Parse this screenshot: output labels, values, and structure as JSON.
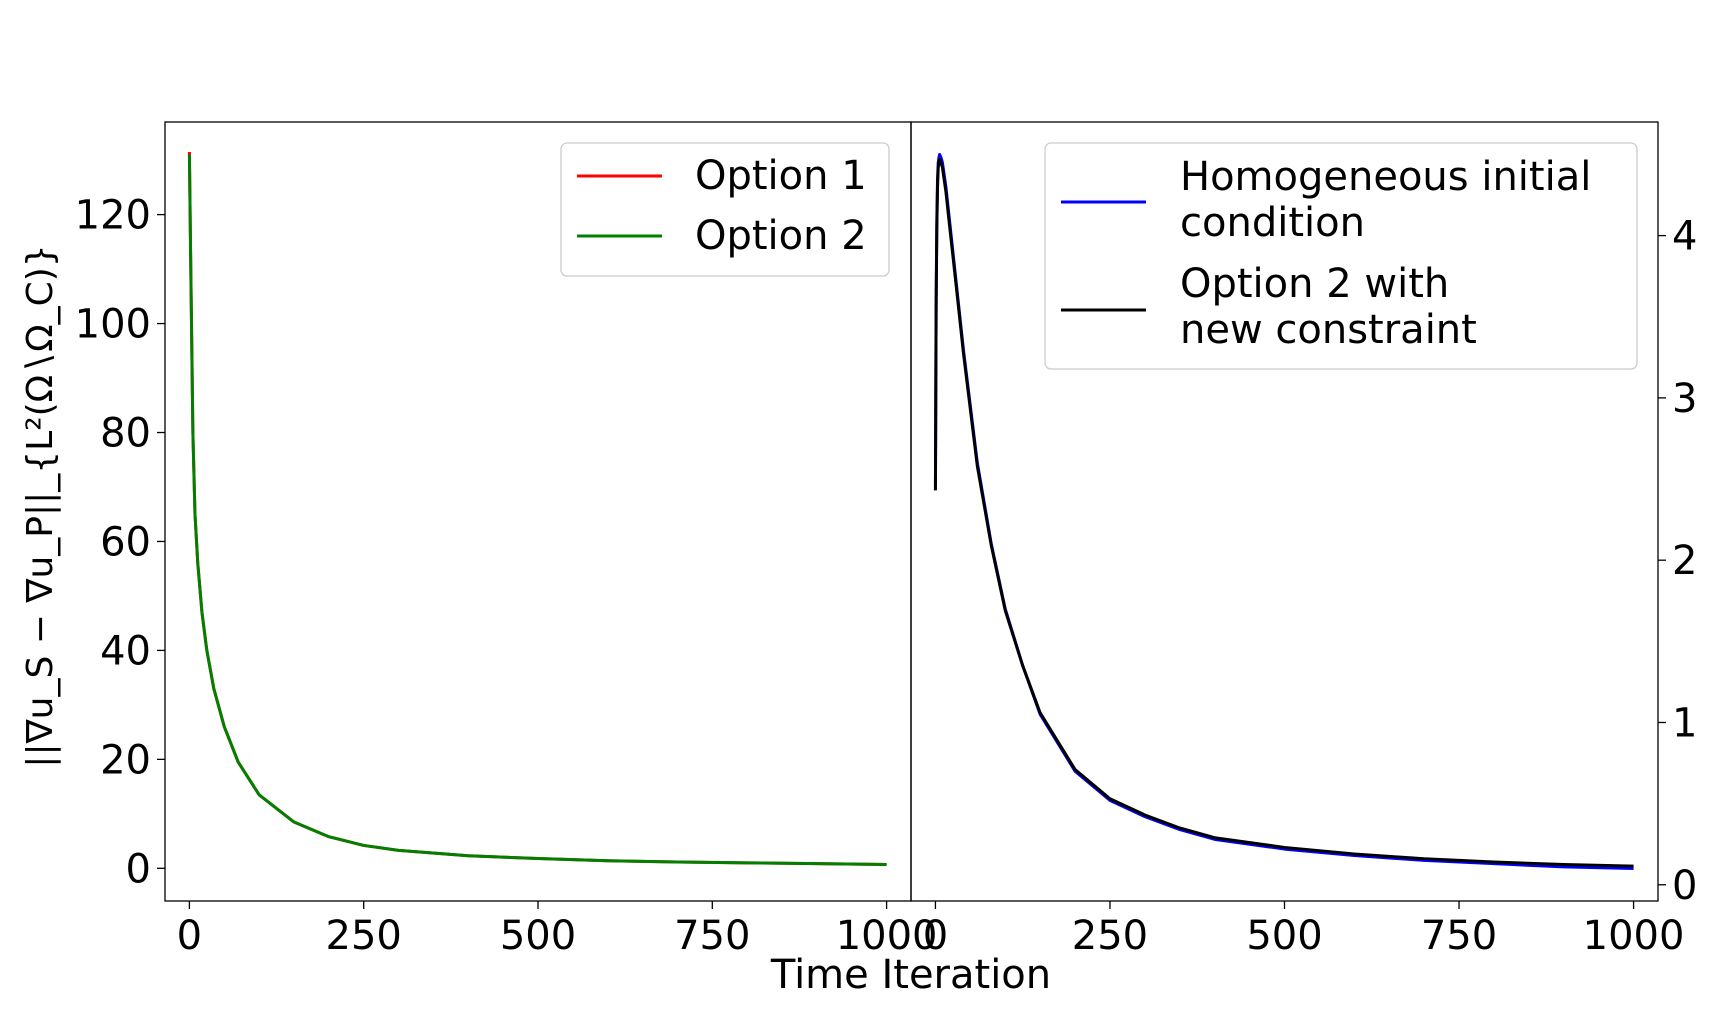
{
  "figure": {
    "xlabel": "Time Iteration",
    "ylabel": "||∇u_S − ∇u_P||_{L²(Ω∖Ω_C)}"
  },
  "chart_data": [
    {
      "type": "line",
      "panel": "left",
      "xlim": [
        -35,
        1035
      ],
      "ylim": [
        -6,
        137
      ],
      "xticks": [
        0,
        250,
        500,
        750,
        1000
      ],
      "yticks": [
        0,
        20,
        40,
        60,
        80,
        100,
        120
      ],
      "y_axis_side": "left",
      "grid": false,
      "legend_position": "top-right",
      "series": [
        {
          "name": "Option 1",
          "color": "#ff0000",
          "x": [
            0,
            2,
            5,
            8,
            12,
            18,
            25,
            35,
            50,
            70,
            100,
            150,
            200,
            250,
            300,
            400,
            500,
            600,
            700,
            800,
            900,
            1000
          ],
          "y": [
            131.5,
            110,
            80,
            65,
            56,
            47,
            40,
            33,
            26,
            19.5,
            13.5,
            8.5,
            5.8,
            4.2,
            3.3,
            2.3,
            1.8,
            1.4,
            1.15,
            1.0,
            0.85,
            0.7
          ]
        },
        {
          "name": "Option 2",
          "color": "#008000",
          "x": [
            0,
            2,
            5,
            8,
            12,
            18,
            25,
            35,
            50,
            70,
            100,
            150,
            200,
            250,
            300,
            400,
            500,
            600,
            700,
            800,
            900,
            1000
          ],
          "y": [
            131,
            110,
            80,
            65,
            56,
            47,
            40,
            33,
            26,
            19.5,
            13.5,
            8.5,
            5.8,
            4.2,
            3.3,
            2.3,
            1.8,
            1.4,
            1.15,
            1.0,
            0.85,
            0.7
          ]
        }
      ]
    },
    {
      "type": "line",
      "panel": "right",
      "xlim": [
        -35,
        1035
      ],
      "ylim": [
        -0.1,
        4.7
      ],
      "xticks": [
        0,
        250,
        500,
        750,
        1000
      ],
      "yticks": [
        0,
        1,
        2,
        3,
        4
      ],
      "y_axis_side": "right",
      "grid": false,
      "legend_position": "top-right",
      "series": [
        {
          "name": "Homogeneous initial condition",
          "legend_lines": [
            "Homogeneous initial",
            "condition"
          ],
          "color": "#0000ff",
          "x": [
            0,
            1,
            2,
            3,
            4,
            5,
            6,
            8,
            10,
            15,
            20,
            30,
            40,
            50,
            60,
            80,
            100,
            125,
            150,
            200,
            250,
            300,
            350,
            400,
            500,
            600,
            700,
            800,
            900,
            1000
          ],
          "y": [
            2.45,
            3.6,
            4.1,
            4.35,
            4.45,
            4.48,
            4.5,
            4.48,
            4.45,
            4.3,
            4.1,
            3.7,
            3.3,
            2.95,
            2.6,
            2.1,
            1.7,
            1.35,
            1.05,
            0.7,
            0.52,
            0.42,
            0.34,
            0.28,
            0.22,
            0.18,
            0.15,
            0.13,
            0.11,
            0.1
          ]
        },
        {
          "name": "Option 2 with new constraint",
          "legend_lines": [
            "Option 2 with",
            "new constraint"
          ],
          "color": "#000000",
          "x": [
            0,
            1,
            2,
            3,
            4,
            5,
            6,
            8,
            10,
            15,
            20,
            30,
            40,
            50,
            60,
            80,
            100,
            125,
            150,
            200,
            250,
            300,
            350,
            400,
            500,
            600,
            700,
            800,
            900,
            1000
          ],
          "y": [
            2.43,
            3.55,
            4.05,
            4.3,
            4.42,
            4.45,
            4.47,
            4.45,
            4.42,
            4.27,
            4.07,
            3.68,
            3.28,
            2.93,
            2.58,
            2.09,
            1.69,
            1.35,
            1.06,
            0.71,
            0.53,
            0.43,
            0.35,
            0.29,
            0.23,
            0.19,
            0.16,
            0.14,
            0.125,
            0.115
          ]
        }
      ]
    }
  ]
}
